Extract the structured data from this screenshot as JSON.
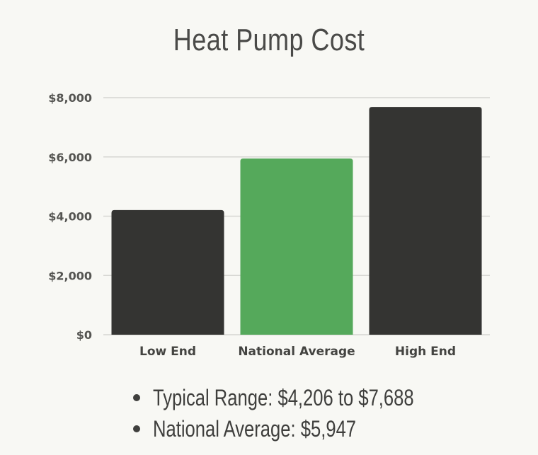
{
  "chart_data": {
    "type": "bar",
    "title": "Heat Pump Cost",
    "categories": [
      "Low End",
      "National Average",
      "High End"
    ],
    "values": [
      4206,
      5947,
      7688
    ],
    "colors": [
      "#343432",
      "#55a95b",
      "#343432"
    ],
    "xlabel": "",
    "ylabel": "",
    "ylim": [
      0,
      8000
    ],
    "yticks": [
      0,
      2000,
      4000,
      6000,
      8000
    ],
    "ytick_labels": [
      "$0",
      "$2,000",
      "$4,000",
      "$6,000",
      "$8,000"
    ],
    "grid": true
  },
  "notes": [
    "Typical Range: $4,206 to $7,688",
    "National Average: $5,947"
  ]
}
